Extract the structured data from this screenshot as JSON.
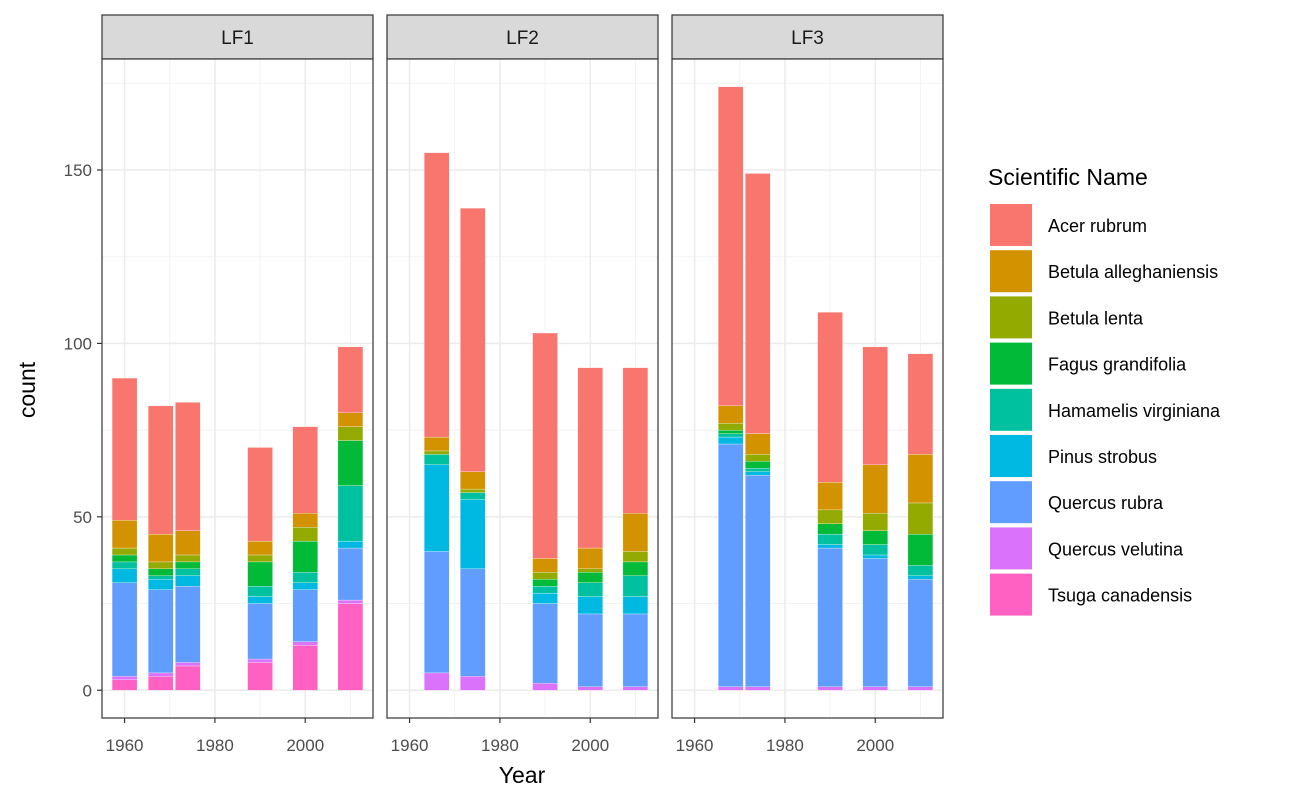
{
  "chart_data": {
    "type": "bar",
    "stacked": true,
    "facets": [
      "LF1",
      "LF2",
      "LF3"
    ],
    "xlabel": "Year",
    "ylabel": "count",
    "xlim": [
      1955,
      2015
    ],
    "ylim": [
      -8,
      182
    ],
    "x_ticks": [
      "1960",
      "1980",
      "2000"
    ],
    "x_tick_values": [
      1960,
      1980,
      2000
    ],
    "y_ticks": [
      "0",
      "50",
      "100",
      "150"
    ],
    "y_tick_values": [
      0,
      50,
      100,
      150
    ],
    "grid": true,
    "legend": {
      "title": "Scientific Name",
      "position": "right"
    },
    "species": [
      {
        "name": "Acer rubrum",
        "color": "#F8766D"
      },
      {
        "name": "Betula alleghaniensis",
        "color": "#D39200"
      },
      {
        "name": "Betula lenta",
        "color": "#93AA00"
      },
      {
        "name": "Fagus grandifolia",
        "color": "#00BA38"
      },
      {
        "name": "Hamamelis virginiana",
        "color": "#00C19F"
      },
      {
        "name": "Pinus strobus",
        "color": "#00B9E3"
      },
      {
        "name": "Quercus rubra",
        "color": "#619CFF"
      },
      {
        "name": "Quercus velutina",
        "color": "#DB72FB"
      },
      {
        "name": "Tsuga canadensis",
        "color": "#FF61C3"
      }
    ],
    "stack_order": [
      "Tsuga canadensis",
      "Quercus velutina",
      "Quercus rubra",
      "Pinus strobus",
      "Hamamelis virginiana",
      "Fagus grandifolia",
      "Betula lenta",
      "Betula alleghaniensis",
      "Acer rubrum"
    ],
    "panels": [
      {
        "facet": "LF1",
        "bars": [
          {
            "year": 1960,
            "values": {
              "Tsuga canadensis": 3,
              "Quercus velutina": 1,
              "Quercus rubra": 27,
              "Pinus strobus": 4,
              "Hamamelis virginiana": 2,
              "Fagus grandifolia": 2,
              "Betula lenta": 2,
              "Betula alleghaniensis": 8,
              "Acer rubrum": 41
            }
          },
          {
            "year": 1968,
            "values": {
              "Tsuga canadensis": 4,
              "Quercus velutina": 1,
              "Quercus rubra": 24,
              "Pinus strobus": 3,
              "Hamamelis virginiana": 1,
              "Fagus grandifolia": 2,
              "Betula lenta": 2,
              "Betula alleghaniensis": 8,
              "Acer rubrum": 37
            }
          },
          {
            "year": 1974,
            "values": {
              "Tsuga canadensis": 7,
              "Quercus velutina": 1,
              "Quercus rubra": 22,
              "Pinus strobus": 3,
              "Hamamelis virginiana": 2,
              "Fagus grandifolia": 2,
              "Betula lenta": 2,
              "Betula alleghaniensis": 7,
              "Acer rubrum": 37
            }
          },
          {
            "year": 1990,
            "values": {
              "Tsuga canadensis": 8,
              "Quercus velutina": 1,
              "Quercus rubra": 16,
              "Pinus strobus": 2,
              "Hamamelis virginiana": 3,
              "Fagus grandifolia": 7,
              "Betula lenta": 2,
              "Betula alleghaniensis": 4,
              "Acer rubrum": 27
            }
          },
          {
            "year": 2000,
            "values": {
              "Tsuga canadensis": 13,
              "Quercus velutina": 1,
              "Quercus rubra": 15,
              "Pinus strobus": 2,
              "Hamamelis virginiana": 3,
              "Fagus grandifolia": 9,
              "Betula lenta": 4,
              "Betula alleghaniensis": 4,
              "Acer rubrum": 25
            }
          },
          {
            "year": 2010,
            "values": {
              "Tsuga canadensis": 25,
              "Quercus velutina": 1,
              "Quercus rubra": 15,
              "Pinus strobus": 2,
              "Hamamelis virginiana": 16,
              "Fagus grandifolia": 13,
              "Betula lenta": 4,
              "Betula alleghaniensis": 4,
              "Acer rubrum": 19
            }
          }
        ]
      },
      {
        "facet": "LF2",
        "bars": [
          {
            "year": 1966,
            "values": {
              "Tsuga canadensis": 0,
              "Quercus velutina": 5,
              "Quercus rubra": 35,
              "Pinus strobus": 25,
              "Hamamelis virginiana": 3,
              "Fagus grandifolia": 0,
              "Betula lenta": 1,
              "Betula alleghaniensis": 4,
              "Acer rubrum": 82
            }
          },
          {
            "year": 1974,
            "values": {
              "Tsuga canadensis": 0,
              "Quercus velutina": 4,
              "Quercus rubra": 31,
              "Pinus strobus": 20,
              "Hamamelis virginiana": 2,
              "Fagus grandifolia": 0,
              "Betula lenta": 1,
              "Betula alleghaniensis": 5,
              "Acer rubrum": 76
            }
          },
          {
            "year": 1990,
            "values": {
              "Tsuga canadensis": 0,
              "Quercus velutina": 2,
              "Quercus rubra": 23,
              "Pinus strobus": 3,
              "Hamamelis virginiana": 2,
              "Fagus grandifolia": 2,
              "Betula lenta": 2,
              "Betula alleghaniensis": 4,
              "Acer rubrum": 65
            }
          },
          {
            "year": 2000,
            "values": {
              "Tsuga canadensis": 0,
              "Quercus velutina": 1,
              "Quercus rubra": 21,
              "Pinus strobus": 5,
              "Hamamelis virginiana": 4,
              "Fagus grandifolia": 3,
              "Betula lenta": 1,
              "Betula alleghaniensis": 6,
              "Acer rubrum": 52
            }
          },
          {
            "year": 2010,
            "values": {
              "Tsuga canadensis": 0,
              "Quercus velutina": 1,
              "Quercus rubra": 21,
              "Pinus strobus": 5,
              "Hamamelis virginiana": 6,
              "Fagus grandifolia": 4,
              "Betula lenta": 3,
              "Betula alleghaniensis": 11,
              "Acer rubrum": 42
            }
          }
        ]
      },
      {
        "facet": "LF3",
        "bars": [
          {
            "year": 1968,
            "values": {
              "Tsuga canadensis": 0,
              "Quercus velutina": 1,
              "Quercus rubra": 70,
              "Pinus strobus": 2,
              "Hamamelis virginiana": 1,
              "Fagus grandifolia": 1,
              "Betula lenta": 2,
              "Betula alleghaniensis": 5,
              "Acer rubrum": 92
            }
          },
          {
            "year": 1974,
            "values": {
              "Tsuga canadensis": 0,
              "Quercus velutina": 1,
              "Quercus rubra": 61,
              "Pinus strobus": 1,
              "Hamamelis virginiana": 1,
              "Fagus grandifolia": 2,
              "Betula lenta": 2,
              "Betula alleghaniensis": 6,
              "Acer rubrum": 75
            }
          },
          {
            "year": 1990,
            "values": {
              "Tsuga canadensis": 0,
              "Quercus velutina": 1,
              "Quercus rubra": 40,
              "Pinus strobus": 1,
              "Hamamelis virginiana": 3,
              "Fagus grandifolia": 3,
              "Betula lenta": 4,
              "Betula alleghaniensis": 8,
              "Acer rubrum": 49
            }
          },
          {
            "year": 2000,
            "values": {
              "Tsuga canadensis": 0,
              "Quercus velutina": 1,
              "Quercus rubra": 37,
              "Pinus strobus": 1,
              "Hamamelis virginiana": 3,
              "Fagus grandifolia": 4,
              "Betula lenta": 5,
              "Betula alleghaniensis": 14,
              "Acer rubrum": 34
            }
          },
          {
            "year": 2010,
            "values": {
              "Tsuga canadensis": 0,
              "Quercus velutina": 1,
              "Quercus rubra": 31,
              "Pinus strobus": 1,
              "Hamamelis virginiana": 3,
              "Fagus grandifolia": 9,
              "Betula lenta": 9,
              "Betula alleghaniensis": 14,
              "Acer rubrum": 29
            }
          }
        ]
      }
    ]
  }
}
